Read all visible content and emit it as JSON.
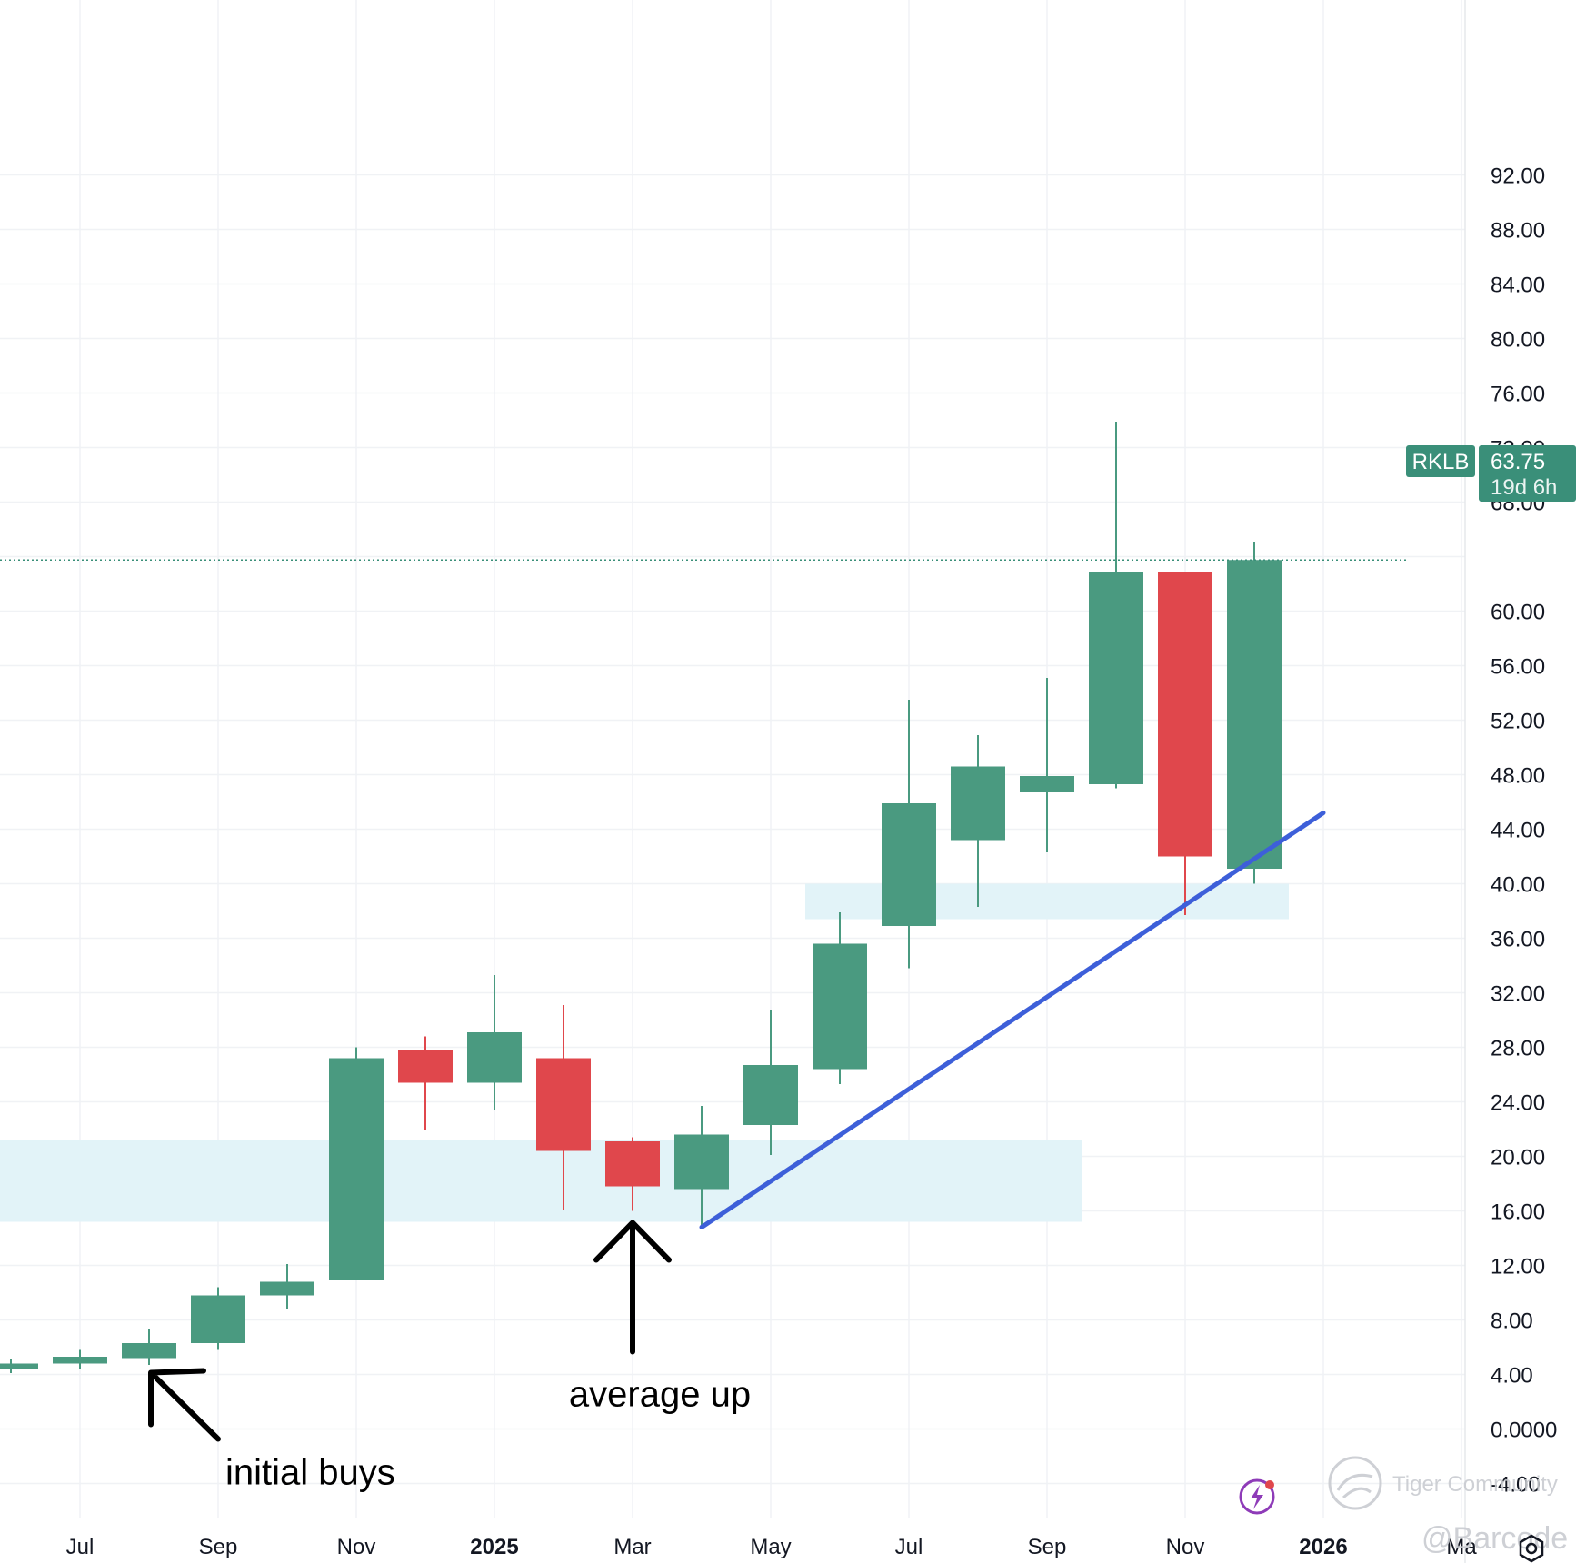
{
  "chart_data": {
    "type": "candlestick",
    "ticker": "RKLB",
    "last_price": "63.75",
    "countdown": "19d 6h",
    "colors": {
      "up": "#4a9a80",
      "down": "#e0474c",
      "zone": "#e2f3f8",
      "trendline": "#3d5fd9",
      "arrow": "#000000",
      "price_line": "#3a8f79"
    },
    "y_axis": {
      "min": -4,
      "max": 92,
      "ticks": [
        92,
        88,
        84,
        80,
        76,
        72,
        68,
        64,
        60,
        56,
        52,
        48,
        44,
        40,
        36,
        32,
        28,
        24,
        20,
        16,
        12,
        8,
        4,
        0,
        -4
      ],
      "tick_labels": [
        "92.00",
        "88.00",
        "84.00",
        "80.00",
        "76.00",
        "72.00",
        "68.00",
        "",
        "60.00",
        "56.00",
        "52.00",
        "48.00",
        "44.00",
        "40.00",
        "36.00",
        "32.00",
        "28.00",
        "24.00",
        "20.00",
        "16.00",
        "12.00",
        "8.00",
        "4.00",
        "0.0000",
        "-4.00"
      ]
    },
    "x_axis": {
      "ticks": [
        {
          "date": "2024-07",
          "label": "Jul",
          "bold": false
        },
        {
          "date": "2024-09",
          "label": "Sep",
          "bold": false
        },
        {
          "date": "2024-11",
          "label": "Nov",
          "bold": false
        },
        {
          "date": "2025-01",
          "label": "2025",
          "bold": true
        },
        {
          "date": "2025-03",
          "label": "Mar",
          "bold": false
        },
        {
          "date": "2025-05",
          "label": "May",
          "bold": false
        },
        {
          "date": "2025-07",
          "label": "Jul",
          "bold": false
        },
        {
          "date": "2025-09",
          "label": "Sep",
          "bold": false
        },
        {
          "date": "2025-11",
          "label": "Nov",
          "bold": false
        },
        {
          "date": "2026-01",
          "label": "2026",
          "bold": true
        },
        {
          "date": "2026-03",
          "label": "Ma",
          "bold": false
        }
      ]
    },
    "candles": [
      {
        "date": "2024-06",
        "open": 4.4,
        "high": 5.1,
        "low": 4.1,
        "close": 4.8
      },
      {
        "date": "2024-07",
        "open": 4.8,
        "high": 5.8,
        "low": 4.4,
        "close": 5.3
      },
      {
        "date": "2024-08",
        "open": 5.2,
        "high": 7.3,
        "low": 4.7,
        "close": 6.3
      },
      {
        "date": "2024-09",
        "open": 6.3,
        "high": 10.4,
        "low": 5.8,
        "close": 9.8
      },
      {
        "date": "2024-10",
        "open": 9.8,
        "high": 12.1,
        "low": 8.8,
        "close": 10.8
      },
      {
        "date": "2024-11",
        "open": 10.9,
        "high": 28.0,
        "low": 10.9,
        "close": 27.2
      },
      {
        "date": "2024-12",
        "open": 27.8,
        "high": 28.8,
        "low": 21.9,
        "close": 25.4
      },
      {
        "date": "2025-01",
        "open": 25.4,
        "high": 33.3,
        "low": 23.4,
        "close": 29.1
      },
      {
        "date": "2025-02",
        "open": 27.2,
        "high": 31.1,
        "low": 16.1,
        "close": 20.4
      },
      {
        "date": "2025-03",
        "open": 21.1,
        "high": 21.4,
        "low": 16.0,
        "close": 17.8
      },
      {
        "date": "2025-04",
        "open": 17.6,
        "high": 23.7,
        "low": 14.8,
        "close": 21.6
      },
      {
        "date": "2025-05",
        "open": 22.3,
        "high": 30.7,
        "low": 20.1,
        "close": 26.7
      },
      {
        "date": "2025-06",
        "open": 26.4,
        "high": 37.9,
        "low": 25.3,
        "close": 35.6
      },
      {
        "date": "2025-07",
        "open": 36.9,
        "high": 53.5,
        "low": 33.8,
        "close": 45.9
      },
      {
        "date": "2025-08",
        "open": 43.2,
        "high": 50.9,
        "low": 38.3,
        "close": 48.6
      },
      {
        "date": "2025-09",
        "open": 46.7,
        "high": 55.1,
        "low": 42.3,
        "close": 47.9
      },
      {
        "date": "2025-10",
        "open": 47.3,
        "high": 73.9,
        "low": 47.0,
        "close": 62.9
      },
      {
        "date": "2025-11",
        "open": 62.9,
        "high": 62.9,
        "low": 37.7,
        "close": 42.0
      },
      {
        "date": "2025-12",
        "open": 41.1,
        "high": 65.1,
        "low": 40.0,
        "close": 63.75
      }
    ],
    "zones": [
      {
        "from": "2024-01",
        "to": "2025-09",
        "low": 15.2,
        "high": 21.2
      },
      {
        "from": "2025-06",
        "to": "2025-12",
        "low": 37.4,
        "high": 40.0
      }
    ],
    "trendline": [
      {
        "date": "2025-04",
        "value": 14.8
      },
      {
        "date": "2026-01",
        "value": 45.2
      }
    ],
    "annotations": [
      {
        "text": "initial buys",
        "date": "2024-08",
        "value": 4.4
      },
      {
        "text": "average up",
        "date": "2025-03",
        "value": 15.4
      }
    ],
    "watermark": {
      "text": "Tiger Community",
      "handle": "@Barcode"
    }
  }
}
